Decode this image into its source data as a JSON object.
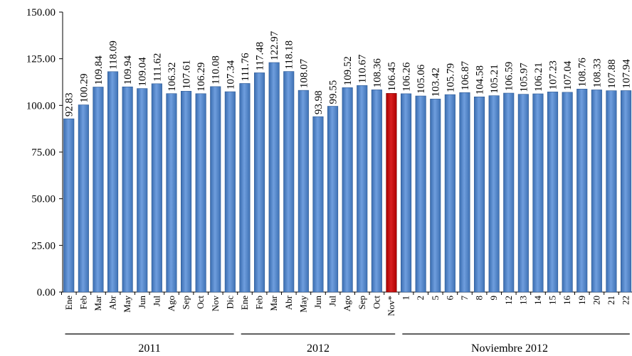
{
  "chart_data": {
    "type": "bar",
    "ylim": [
      0,
      150
    ],
    "yticks": [
      "0.00",
      "25.00",
      "50.00",
      "75.00",
      "100.00",
      "125.00",
      "150.00"
    ],
    "grid": false,
    "categories": [
      "Ene",
      "Feb",
      "Mar",
      "Abr",
      "May",
      "Jun",
      "Jul",
      "Ago",
      "Sep",
      "Oct",
      "Nov",
      "Dic",
      "Ene",
      "Feb",
      "Mar",
      "Abr",
      "May",
      "Jun",
      "Jul",
      "Ago",
      "Sep",
      "Oct",
      "Nov*",
      "1",
      "2",
      "5",
      "6",
      "7",
      "8",
      "9",
      "12",
      "13",
      "14",
      "15",
      "16",
      "19",
      "20",
      "21",
      "22"
    ],
    "values": [
      92.83,
      100.29,
      109.84,
      118.09,
      109.94,
      109.04,
      111.62,
      106.32,
      107.61,
      106.29,
      110.08,
      107.34,
      111.76,
      117.48,
      122.97,
      118.18,
      108.07,
      93.98,
      99.55,
      109.52,
      110.67,
      108.36,
      106.45,
      106.26,
      105.06,
      103.42,
      105.79,
      106.87,
      104.58,
      105.21,
      106.59,
      105.97,
      106.21,
      107.23,
      107.04,
      108.76,
      108.33,
      107.88,
      107.94
    ],
    "value_labels": [
      "92.83",
      "100.29",
      "109.84",
      "118.09",
      "109.94",
      "109.04",
      "111.62",
      "106.32",
      "107.61",
      "106.29",
      "110.08",
      "107.34",
      "111.76",
      "117.48",
      "122.97",
      "118.18",
      "108.07",
      "93.98",
      "99.55",
      "109.52",
      "110.67",
      "108.36",
      "106.45",
      "106.26",
      "105.06",
      "103.42",
      "105.79",
      "106.87",
      "104.58",
      "105.21",
      "106.59",
      "105.97",
      "106.21",
      "107.23",
      "107.04",
      "108.76",
      "108.33",
      "107.88",
      "107.94"
    ],
    "highlight_index": 22,
    "groups": [
      {
        "label": "2011",
        "start": 0,
        "end": 11
      },
      {
        "label": "2012",
        "start": 12,
        "end": 22
      },
      {
        "label": "Noviembre 2012",
        "start": 23,
        "end": 38
      }
    ],
    "colors": {
      "bar": "#4a7ebb",
      "bar_highlight": "#c00000"
    }
  }
}
